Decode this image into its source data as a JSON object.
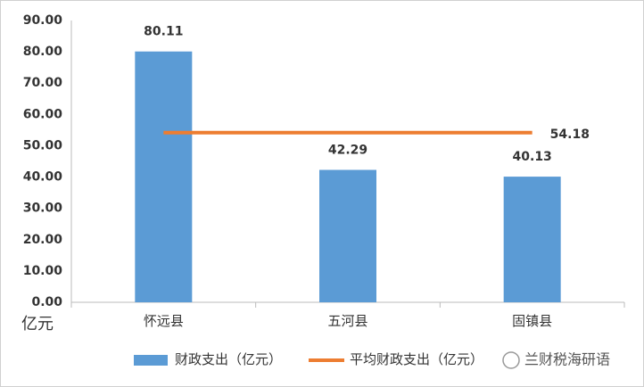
{
  "chart_data": {
    "type": "bar",
    "categories": [
      "怀远县",
      "五河县",
      "固镇县"
    ],
    "series": [
      {
        "name": "财政支出（亿元）",
        "type": "bar",
        "color": "#5b9bd5",
        "values": [
          80.11,
          42.29,
          40.13
        ]
      },
      {
        "name": "平均财政支出（亿元）",
        "type": "line",
        "color": "#ed7d31",
        "values": [
          54.18,
          54.18,
          54.18
        ],
        "value_labels": [
          null,
          null,
          "54.18"
        ]
      }
    ],
    "y_axis_label": "亿元",
    "ylim": [
      0,
      90
    ],
    "yticks": [
      {
        "value": 0,
        "label": "0.00"
      },
      {
        "value": 10,
        "label": "10.00"
      },
      {
        "value": 20,
        "label": "20.00"
      },
      {
        "value": 30,
        "label": "30.00"
      },
      {
        "value": 40,
        "label": "40.00"
      },
      {
        "value": 50,
        "label": "50.00"
      },
      {
        "value": 60,
        "label": "60.00"
      },
      {
        "value": 70,
        "label": "70.00"
      },
      {
        "value": 80,
        "label": "80.00"
      },
      {
        "value": 90,
        "label": "90.00"
      }
    ],
    "grid": false,
    "legend": "bottom",
    "watermark": "兰财税海研语"
  }
}
